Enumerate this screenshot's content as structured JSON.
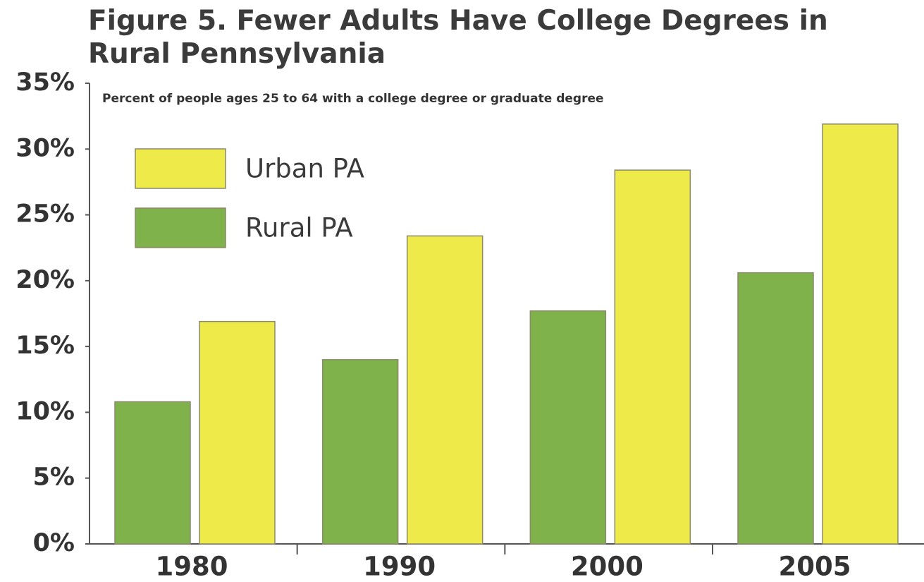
{
  "chart_data": {
    "type": "bar",
    "title": "Figure 5. Fewer Adults Have College Degrees in Rural Pennsylvania",
    "subtitle": "Percent of people ages 25 to 64 with a college degree or graduate degree",
    "categories": [
      "1980",
      "1990",
      "2000",
      "2005"
    ],
    "series": [
      {
        "name": "Rural PA",
        "color": "#7fb24a",
        "values": [
          10.8,
          14.0,
          17.7,
          20.6
        ]
      },
      {
        "name": "Urban PA",
        "color": "#eeea4a",
        "values": [
          16.9,
          23.4,
          28.4,
          31.9
        ]
      }
    ],
    "ylim": [
      0,
      35
    ],
    "yticks": [
      {
        "value": 0,
        "label": "0%"
      },
      {
        "value": 5,
        "label": "5%"
      },
      {
        "value": 10,
        "label": "10%"
      },
      {
        "value": 15,
        "label": "15%"
      },
      {
        "value": 20,
        "label": "20%"
      },
      {
        "value": 25,
        "label": "25%"
      },
      {
        "value": 30,
        "label": "30%"
      },
      {
        "value": 35,
        "label": "35%"
      }
    ],
    "grid": false
  }
}
